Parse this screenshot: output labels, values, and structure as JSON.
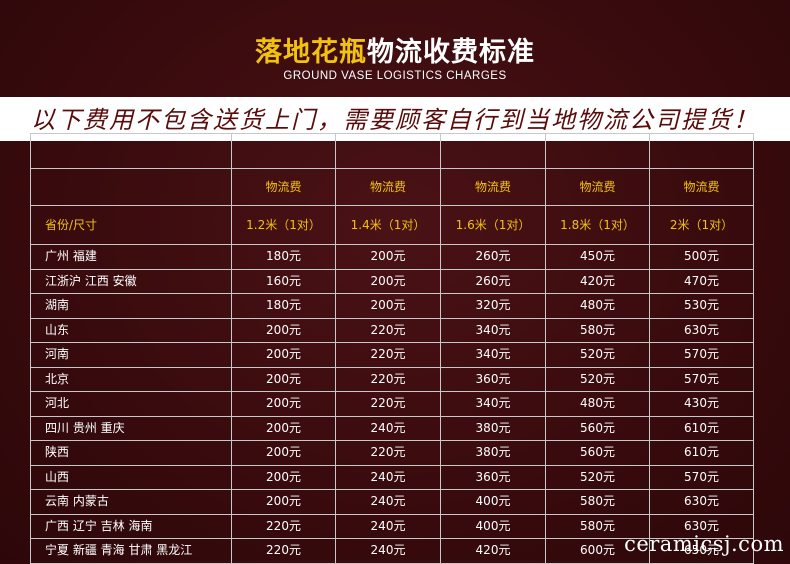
{
  "title": {
    "gold": "落地花瓶",
    "white": "物流收费标准"
  },
  "subtitle": "GROUND VASE LOGISTICS CHARGES",
  "notice": "以下费用不包含送货上门，需要顾客自行到当地物流公司提货！",
  "table": {
    "fee_labels": [
      "物流费",
      "物流费",
      "物流费",
      "物流费",
      "物流费"
    ],
    "province_header": "省份/尺寸",
    "sizes": [
      "1.2米（1对）",
      "1.4米（1对）",
      "1.6米（1对）",
      "1.8米（1对）",
      "2米（1对）"
    ],
    "rows": [
      {
        "province": "广州 福建",
        "prices": [
          "180元",
          "200元",
          "260元",
          "450元",
          "500元"
        ]
      },
      {
        "province": "江浙沪 江西 安徽",
        "prices": [
          "160元",
          "200元",
          "260元",
          "420元",
          "470元"
        ]
      },
      {
        "province": "湖南",
        "prices": [
          "180元",
          "200元",
          "320元",
          "480元",
          "530元"
        ]
      },
      {
        "province": "山东",
        "prices": [
          "200元",
          "220元",
          "340元",
          "580元",
          "630元"
        ]
      },
      {
        "province": "河南",
        "prices": [
          "200元",
          "220元",
          "340元",
          "520元",
          "570元"
        ]
      },
      {
        "province": "北京",
        "prices": [
          "200元",
          "220元",
          "360元",
          "520元",
          "570元"
        ]
      },
      {
        "province": "河北",
        "prices": [
          "200元",
          "220元",
          "340元",
          "480元",
          "430元"
        ]
      },
      {
        "province": "四川 贵州 重庆",
        "prices": [
          "200元",
          "240元",
          "380元",
          "560元",
          "610元"
        ]
      },
      {
        "province": "陕西",
        "prices": [
          "200元",
          "220元",
          "380元",
          "560元",
          "610元"
        ]
      },
      {
        "province": "山西",
        "prices": [
          "200元",
          "240元",
          "360元",
          "520元",
          "570元"
        ]
      },
      {
        "province": "云南 内蒙古",
        "prices": [
          "200元",
          "240元",
          "400元",
          "580元",
          "630元"
        ]
      },
      {
        "province": "广西 辽宁 吉林 海南",
        "prices": [
          "220元",
          "240元",
          "400元",
          "580元",
          "630元"
        ]
      },
      {
        "province": "宁夏 新疆 青海 甘肃 黑龙江",
        "prices": [
          "220元",
          "240元",
          "420元",
          "600元",
          "650元"
        ]
      }
    ]
  },
  "watermark": "ceramicsj.com"
}
